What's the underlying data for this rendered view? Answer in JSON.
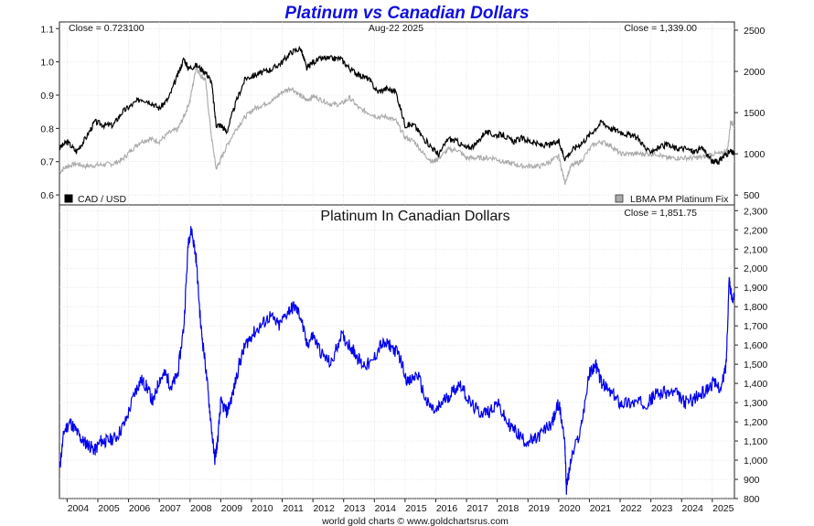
{
  "colors": {
    "title": "#1010e0",
    "cad_usd": "#000000",
    "platinum_usd": "#aaaaaa",
    "platinum_cad": "#0000ee",
    "grid": "#d8d8d8"
  },
  "header": {
    "title": "Platinum vs Canadian Dollars",
    "date": "Aug-22  2025",
    "credit": "world gold charts © www.goldchartsrus.com"
  },
  "chart_data": [
    {
      "type": "line",
      "title": "Platinum vs Canadian Dollars",
      "close_left": "Close = 0.723100",
      "close_right": "Close = 1,339.00",
      "legend_left": "CAD / USD",
      "legend_right": "LBMA PM Platinum Fix",
      "legend_left_position": "bottom-left",
      "legend_right_position": "bottom-right",
      "x_ticks": [
        "2004",
        "2005",
        "2006",
        "2007",
        "2008",
        "2009",
        "2010",
        "2011",
        "2012",
        "2013",
        "2014",
        "2015",
        "2016",
        "2017",
        "2018",
        "2019",
        "2020",
        "2021",
        "2022",
        "2023",
        "2024",
        "2025"
      ],
      "xlim": [
        2003.75,
        2025.72
      ],
      "left_axis": {
        "ticks": [
          "0.6",
          "0.7",
          "0.8",
          "0.9",
          "1.0",
          "1.1"
        ],
        "tick_values": [
          0.6,
          0.7,
          0.8,
          0.9,
          1.0,
          1.1
        ],
        "ylim": [
          0.57,
          1.12
        ]
      },
      "right_axis": {
        "ticks": [
          "500",
          "1000",
          "1500",
          "2000",
          "2500"
        ],
        "tick_values": [
          500,
          1000,
          1500,
          2000,
          2500
        ],
        "ylim": [
          380,
          2600
        ]
      },
      "grid": true,
      "series": [
        {
          "name": "CAD / USD",
          "axis": "left",
          "x": [
            2003.75,
            2004.0,
            2004.3,
            2004.6,
            2004.9,
            2005.2,
            2005.5,
            2005.8,
            2006.1,
            2006.4,
            2006.7,
            2007.0,
            2007.3,
            2007.6,
            2007.8,
            2007.95,
            2008.2,
            2008.5,
            2008.7,
            2008.85,
            2009.0,
            2009.2,
            2009.5,
            2009.8,
            2010.1,
            2010.4,
            2010.7,
            2011.0,
            2011.3,
            2011.6,
            2011.8,
            2012.0,
            2012.3,
            2012.6,
            2012.9,
            2013.2,
            2013.5,
            2013.8,
            2014.1,
            2014.4,
            2014.7,
            2015.0,
            2015.3,
            2015.6,
            2015.9,
            2016.1,
            2016.4,
            2016.7,
            2017.0,
            2017.3,
            2017.6,
            2017.9,
            2018.2,
            2018.5,
            2018.8,
            2019.1,
            2019.4,
            2019.7,
            2020.0,
            2020.2,
            2020.5,
            2020.8,
            2021.1,
            2021.4,
            2021.7,
            2022.0,
            2022.3,
            2022.6,
            2022.9,
            2023.2,
            2023.5,
            2023.8,
            2024.1,
            2024.4,
            2024.7,
            2025.0,
            2025.2,
            2025.4,
            2025.6,
            2025.72
          ],
          "values": [
            0.74,
            0.76,
            0.73,
            0.77,
            0.82,
            0.81,
            0.81,
            0.85,
            0.87,
            0.89,
            0.88,
            0.86,
            0.89,
            0.96,
            1.01,
            0.98,
            0.99,
            0.97,
            0.94,
            0.81,
            0.81,
            0.79,
            0.88,
            0.95,
            0.96,
            0.97,
            0.98,
            1.0,
            1.03,
            1.04,
            0.98,
            1.0,
            1.01,
            1.01,
            1.01,
            0.98,
            0.96,
            0.95,
            0.91,
            0.92,
            0.91,
            0.81,
            0.81,
            0.77,
            0.74,
            0.72,
            0.77,
            0.76,
            0.74,
            0.75,
            0.79,
            0.78,
            0.78,
            0.76,
            0.77,
            0.76,
            0.75,
            0.75,
            0.76,
            0.71,
            0.74,
            0.76,
            0.79,
            0.82,
            0.8,
            0.79,
            0.78,
            0.77,
            0.73,
            0.74,
            0.75,
            0.74,
            0.74,
            0.73,
            0.74,
            0.7,
            0.7,
            0.72,
            0.73,
            0.7231
          ]
        },
        {
          "name": "LBMA PM Platinum Fix",
          "axis": "right",
          "x": [
            2003.75,
            2004.0,
            2004.3,
            2004.6,
            2004.9,
            2005.2,
            2005.5,
            2005.8,
            2006.1,
            2006.4,
            2006.7,
            2007.0,
            2007.3,
            2007.6,
            2007.8,
            2008.0,
            2008.2,
            2008.35,
            2008.5,
            2008.7,
            2008.85,
            2009.0,
            2009.2,
            2009.5,
            2009.8,
            2010.1,
            2010.4,
            2010.7,
            2011.0,
            2011.3,
            2011.6,
            2011.8,
            2012.0,
            2012.3,
            2012.6,
            2012.9,
            2013.2,
            2013.5,
            2013.8,
            2014.1,
            2014.4,
            2014.7,
            2015.0,
            2015.3,
            2015.6,
            2015.9,
            2016.1,
            2016.4,
            2016.7,
            2017.0,
            2017.3,
            2017.6,
            2017.9,
            2018.2,
            2018.5,
            2018.8,
            2019.1,
            2019.4,
            2019.7,
            2020.0,
            2020.2,
            2020.4,
            2020.7,
            2021.1,
            2021.4,
            2021.7,
            2022.0,
            2022.3,
            2022.6,
            2022.9,
            2023.2,
            2023.5,
            2023.8,
            2024.1,
            2024.4,
            2024.7,
            2025.0,
            2025.3,
            2025.5,
            2025.6,
            2025.72
          ],
          "values": [
            780,
            850,
            880,
            850,
            860,
            870,
            880,
            930,
            1050,
            1150,
            1180,
            1150,
            1250,
            1300,
            1450,
            1650,
            2050,
            1950,
            1900,
            1200,
            820,
            930,
            1100,
            1300,
            1450,
            1550,
            1600,
            1650,
            1750,
            1800,
            1700,
            1650,
            1700,
            1650,
            1600,
            1600,
            1680,
            1550,
            1500,
            1450,
            1450,
            1400,
            1200,
            1150,
            1000,
            900,
            950,
            1050,
            1050,
            950,
            950,
            950,
            950,
            900,
            880,
            850,
            850,
            850,
            900,
            970,
            650,
            850,
            900,
            1100,
            1150,
            1100,
            1000,
            1000,
            1000,
            1000,
            1000,
            950,
            950,
            950,
            950,
            960,
            1000,
            1000,
            1050,
            1400,
            1339
          ]
        },
        {
          "name": "Platinum In Canadian Dollars",
          "title": "Platinum In Canadian Dollars",
          "close": "Close = 1,851.75",
          "axis": "lower",
          "x": [
            2003.75,
            2003.9,
            2004.1,
            2004.3,
            2004.5,
            2004.7,
            2004.9,
            2005.1,
            2005.3,
            2005.6,
            2005.9,
            2006.2,
            2006.4,
            2006.6,
            2006.8,
            2007.0,
            2007.2,
            2007.4,
            2007.6,
            2007.8,
            2007.95,
            2008.05,
            2008.2,
            2008.35,
            2008.5,
            2008.65,
            2008.8,
            2008.9,
            2009.0,
            2009.2,
            2009.4,
            2009.6,
            2009.8,
            2010.0,
            2010.3,
            2010.6,
            2010.9,
            2011.2,
            2011.4,
            2011.6,
            2011.8,
            2012.0,
            2012.3,
            2012.6,
            2012.9,
            2013.2,
            2013.4,
            2013.6,
            2013.9,
            2014.2,
            2014.5,
            2014.8,
            2015.1,
            2015.4,
            2015.7,
            2016.0,
            2016.2,
            2016.5,
            2016.8,
            2017.1,
            2017.4,
            2017.7,
            2018.0,
            2018.3,
            2018.6,
            2018.9,
            2019.2,
            2019.5,
            2019.8,
            2020.0,
            2020.2,
            2020.25,
            2020.4,
            2020.7,
            2021.0,
            2021.2,
            2021.4,
            2021.7,
            2022.0,
            2022.3,
            2022.6,
            2022.9,
            2023.2,
            2023.5,
            2023.8,
            2024.1,
            2024.4,
            2024.7,
            2025.0,
            2025.3,
            2025.45,
            2025.55,
            2025.62,
            2025.72
          ],
          "values": [
            950,
            1150,
            1200,
            1150,
            1100,
            1080,
            1050,
            1100,
            1100,
            1120,
            1200,
            1350,
            1420,
            1380,
            1300,
            1420,
            1450,
            1380,
            1450,
            1700,
            2150,
            2200,
            2050,
            1700,
            1500,
            1250,
            1000,
            1100,
            1300,
            1250,
            1350,
            1500,
            1600,
            1650,
            1700,
            1750,
            1700,
            1780,
            1800,
            1750,
            1600,
            1650,
            1550,
            1500,
            1650,
            1600,
            1550,
            1500,
            1500,
            1600,
            1600,
            1550,
            1400,
            1450,
            1300,
            1250,
            1300,
            1350,
            1400,
            1300,
            1250,
            1250,
            1300,
            1200,
            1150,
            1100,
            1100,
            1150,
            1200,
            1300,
            1100,
            850,
            1000,
            1150,
            1450,
            1500,
            1400,
            1350,
            1300,
            1300,
            1300,
            1300,
            1350,
            1350,
            1350,
            1300,
            1320,
            1350,
            1400,
            1380,
            1500,
            1950,
            1850,
            1851.75
          ]
        }
      ],
      "lower_axis": {
        "ticks": [
          "800",
          "900",
          "1,000",
          "1,100",
          "1,200",
          "1,300",
          "1,400",
          "1,500",
          "1,600",
          "1,700",
          "1,800",
          "1,900",
          "2,000",
          "2,100",
          "2,200",
          "2,300"
        ],
        "tick_values": [
          800,
          900,
          1000,
          1100,
          1200,
          1300,
          1400,
          1500,
          1600,
          1700,
          1800,
          1900,
          2000,
          2100,
          2200,
          2300
        ],
        "ylim": [
          800,
          2330
        ]
      }
    }
  ]
}
